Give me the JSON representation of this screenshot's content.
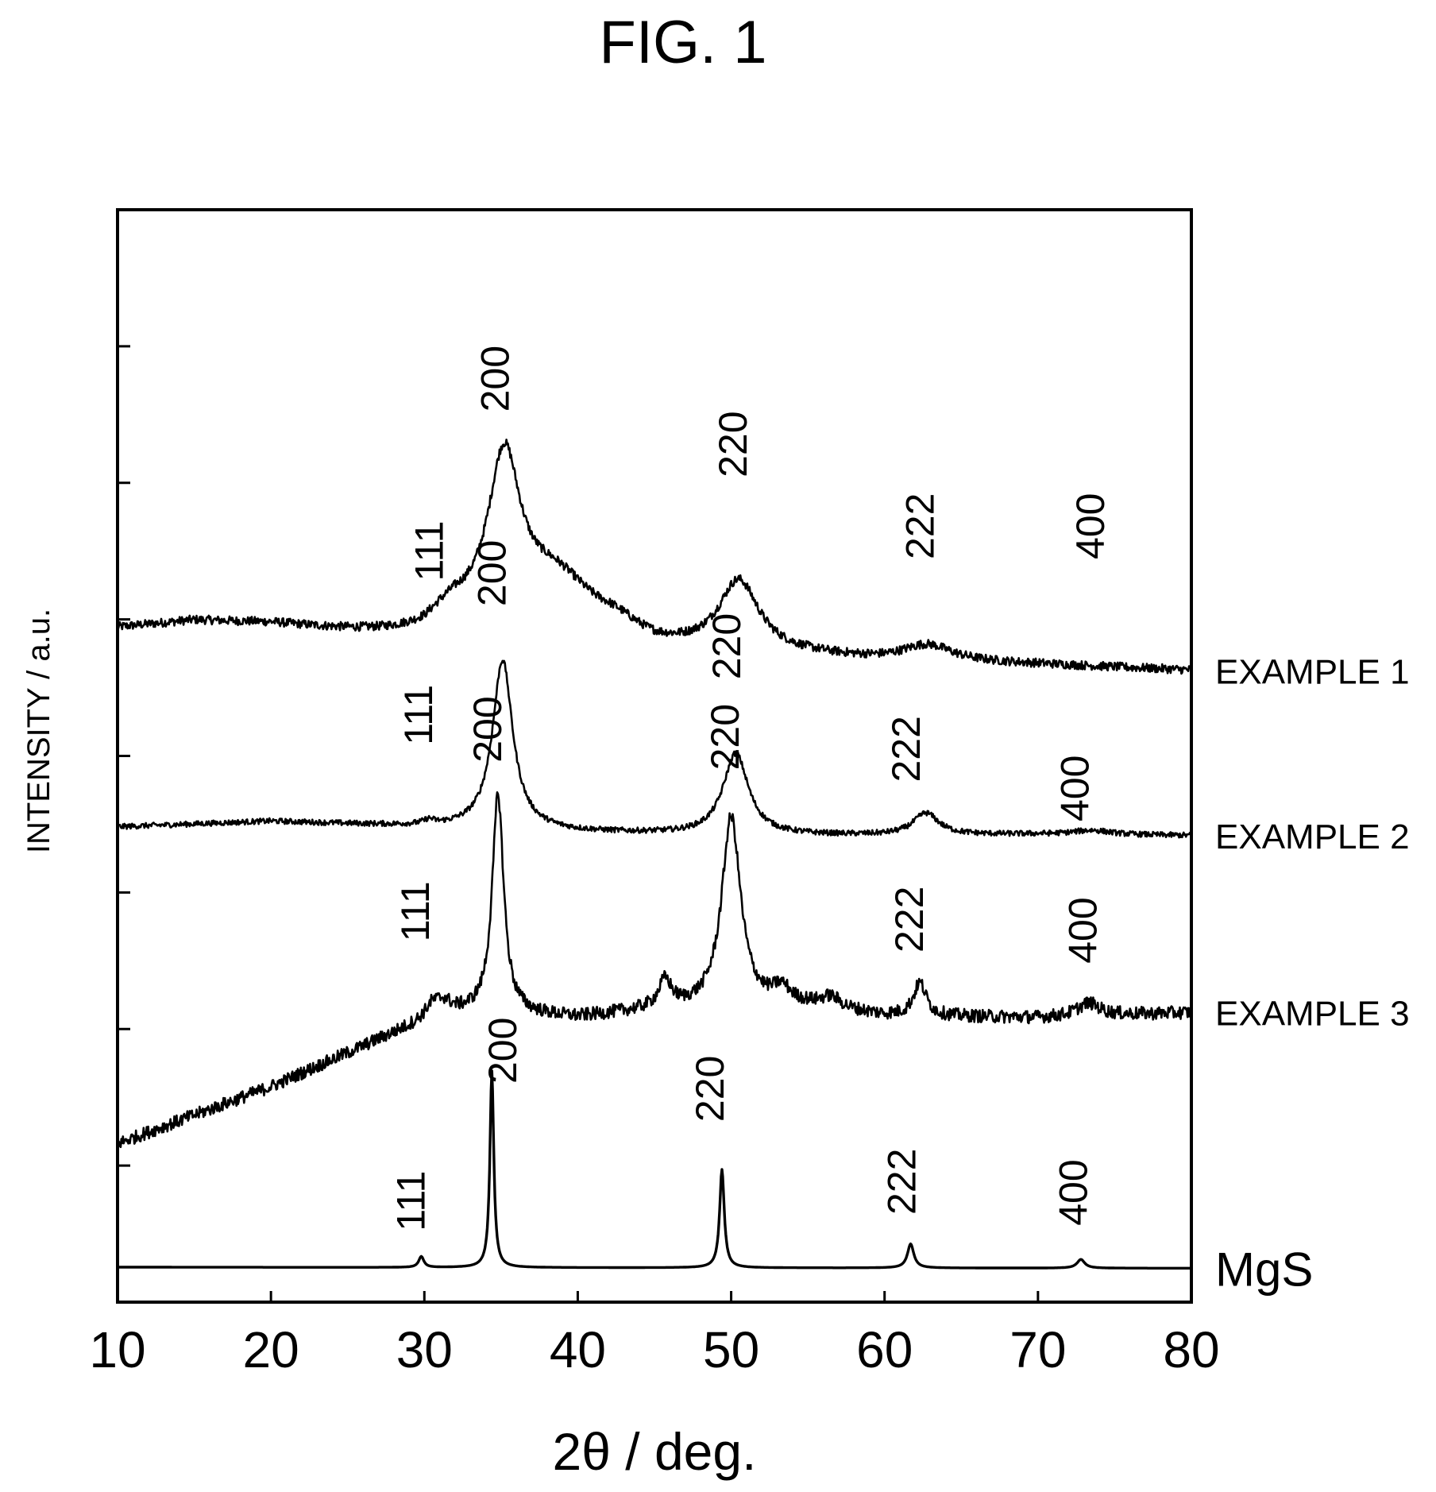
{
  "figure": {
    "title": "FIG. 1"
  },
  "chart_data": {
    "type": "line",
    "title": "FIG. 1",
    "xlabel": "2θ / deg.",
    "ylabel": "INTENSITY / a.u.",
    "xlim": [
      10,
      80
    ],
    "xticks": [
      10,
      20,
      30,
      40,
      50,
      60,
      70,
      80
    ],
    "grid": false,
    "series": [
      {
        "name": "EXAMPLE 1",
        "base": 0.59,
        "bg": [
          [
            10,
            0.617
          ],
          [
            15,
            0.623
          ],
          [
            20,
            0.62
          ],
          [
            25,
            0.612
          ],
          [
            30,
            0.605
          ],
          [
            32,
            0.612
          ],
          [
            40,
            0.605
          ],
          [
            45,
            0.594
          ],
          [
            55,
            0.59
          ],
          [
            60,
            0.586
          ],
          [
            70,
            0.583
          ],
          [
            80,
            0.578
          ]
        ],
        "peaks": [
          [
            31.5,
            0.015,
            2
          ],
          [
            35.2,
            0.15,
            1.3
          ],
          [
            38.5,
            0.05,
            3
          ],
          [
            42.5,
            0.012,
            2
          ],
          [
            50.5,
            0.065,
            1.6
          ],
          [
            62.8,
            0.015,
            2
          ]
        ],
        "noise": 0.004,
        "labels": [
          {
            "hkl": "111",
            "x": 31.2,
            "y": 0.66
          },
          {
            "hkl": "200",
            "x": 35.5,
            "y": 0.815
          },
          {
            "hkl": "220",
            "x": 51.0,
            "y": 0.755
          },
          {
            "hkl": "222",
            "x": 63.2,
            "y": 0.68
          },
          {
            "hkl": "400",
            "x": 74.3,
            "y": 0.68
          }
        ]
      },
      {
        "name": "EXAMPLE 2",
        "base": 0.42,
        "bg": [
          [
            10,
            0.435
          ],
          [
            20,
            0.44
          ],
          [
            30,
            0.435
          ],
          [
            40,
            0.43
          ],
          [
            50,
            0.427
          ],
          [
            60,
            0.427
          ],
          [
            70,
            0.428
          ],
          [
            80,
            0.427
          ]
        ],
        "peaks": [
          [
            30.3,
            0.004,
            0.4
          ],
          [
            35.1,
            0.155,
            0.8
          ],
          [
            50.3,
            0.075,
            1.0
          ],
          [
            62.7,
            0.02,
            1.0
          ],
          [
            73.5,
            0.004,
            1.5
          ]
        ],
        "noise": 0.0025,
        "labels": [
          {
            "hkl": "111",
            "x": 30.5,
            "y": 0.51
          },
          {
            "hkl": "200",
            "x": 35.3,
            "y": 0.637
          },
          {
            "hkl": "220",
            "x": 50.6,
            "y": 0.57
          },
          {
            "hkl": "222",
            "x": 62.3,
            "y": 0.476
          },
          {
            "hkl": "400",
            "x": 73.3,
            "y": 0.44
          }
        ]
      },
      {
        "name": "EXAMPLE 3",
        "base": 0.26,
        "bg": [
          [
            10,
            0.145
          ],
          [
            20,
            0.197
          ],
          [
            27,
            0.24
          ],
          [
            29.5,
            0.255
          ],
          [
            31,
            0.265
          ],
          [
            34,
            0.265
          ],
          [
            40,
            0.26
          ],
          [
            45,
            0.267
          ],
          [
            55,
            0.27
          ],
          [
            60,
            0.262
          ],
          [
            70,
            0.26
          ],
          [
            80,
            0.265
          ]
        ],
        "peaks": [
          [
            30.5,
            0.01,
            0.5
          ],
          [
            31.3,
            0.008,
            0.5
          ],
          [
            34.8,
            0.2,
            0.45
          ],
          [
            45.7,
            0.025,
            0.5
          ],
          [
            50.0,
            0.175,
            0.75
          ],
          [
            53.3,
            0.015,
            0.7
          ],
          [
            56.5,
            0.01,
            0.8
          ],
          [
            62.3,
            0.03,
            0.5
          ],
          [
            73.3,
            0.012,
            0.9
          ]
        ],
        "noise": 0.006,
        "labels": [
          {
            "hkl": "111",
            "x": 30.3,
            "y": 0.33
          },
          {
            "hkl": "200",
            "x": 35.0,
            "y": 0.494
          },
          {
            "hkl": "220",
            "x": 50.5,
            "y": 0.487
          },
          {
            "hkl": "222",
            "x": 62.5,
            "y": 0.32
          },
          {
            "hkl": "400",
            "x": 73.8,
            "y": 0.31
          }
        ]
      },
      {
        "name": "MgS",
        "base": 0.03,
        "bg": [
          [
            10,
            0.032
          ],
          [
            80,
            0.031
          ]
        ],
        "peaks": [
          [
            29.8,
            0.01,
            0.2
          ],
          [
            34.4,
            0.18,
            0.15
          ],
          [
            49.4,
            0.09,
            0.18
          ],
          [
            61.7,
            0.022,
            0.25
          ],
          [
            72.8,
            0.008,
            0.3
          ]
        ],
        "noise": 0,
        "labels": [
          {
            "hkl": "111",
            "x": 30.0,
            "y": 0.065
          },
          {
            "hkl": "200",
            "x": 36.0,
            "y": 0.2
          },
          {
            "hkl": "220",
            "x": 49.5,
            "y": 0.165
          },
          {
            "hkl": "222",
            "x": 62.0,
            "y": 0.08
          },
          {
            "hkl": "400",
            "x": 73.2,
            "y": 0.07
          }
        ]
      }
    ]
  }
}
